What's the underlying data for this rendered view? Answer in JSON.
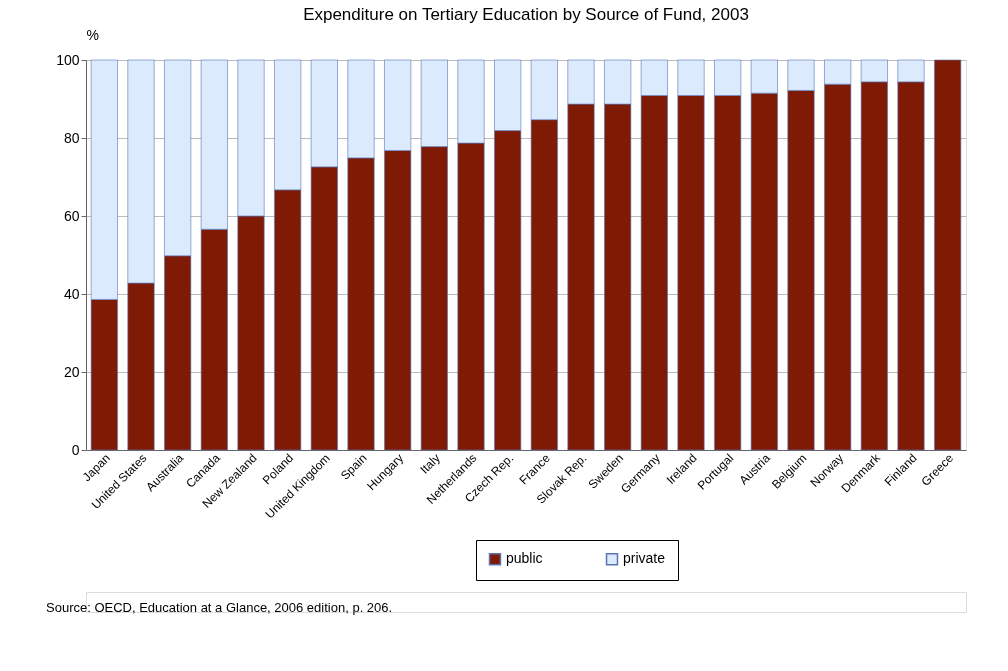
{
  "chart_data": {
    "type": "bar",
    "title": "Expenditure on Tertiary Education by Source of Fund, 2003",
    "ylabel": "%",
    "categories": [
      "Japan",
      "United States",
      "Australia",
      "Canada",
      "New Zealand",
      "Poland",
      "United Kingdom",
      "Spain",
      "Hungary",
      "Italy",
      "Netherlands",
      "Czech Rep.",
      "France",
      "Slovak Rep.",
      "Sweden",
      "Germany",
      "Ireland",
      "Portugal",
      "Austria",
      "Belgium",
      "Norway",
      "Denmark",
      "Finland",
      "Greece"
    ],
    "series": [
      {
        "name": "public",
        "color": "#7f1a05",
        "values": [
          38.6,
          42.8,
          49.8,
          56.6,
          60.0,
          66.7,
          72.6,
          74.9,
          76.8,
          77.8,
          78.7,
          81.9,
          84.7,
          88.7,
          88.7,
          90.9,
          90.9,
          90.9,
          91.5,
          92.2,
          93.8,
          94.4,
          94.4,
          100.0
        ]
      },
      {
        "name": "private",
        "color": "#dbeafd",
        "values": [
          61.4,
          57.2,
          50.2,
          43.4,
          40.0,
          33.3,
          27.4,
          25.1,
          23.2,
          22.2,
          21.3,
          18.1,
          15.3,
          11.3,
          11.3,
          9.1,
          9.1,
          9.1,
          8.5,
          7.8,
          6.2,
          5.6,
          5.6,
          null
        ]
      }
    ],
    "stacked": true,
    "ylim": [
      0,
      100
    ],
    "yticks": [
      0,
      20,
      40,
      60,
      80,
      100
    ],
    "grid": "y",
    "legend": "bottom",
    "annotations": [
      "Source: OECD, Education at a Glance, 2006 edition, p. 206."
    ]
  }
}
